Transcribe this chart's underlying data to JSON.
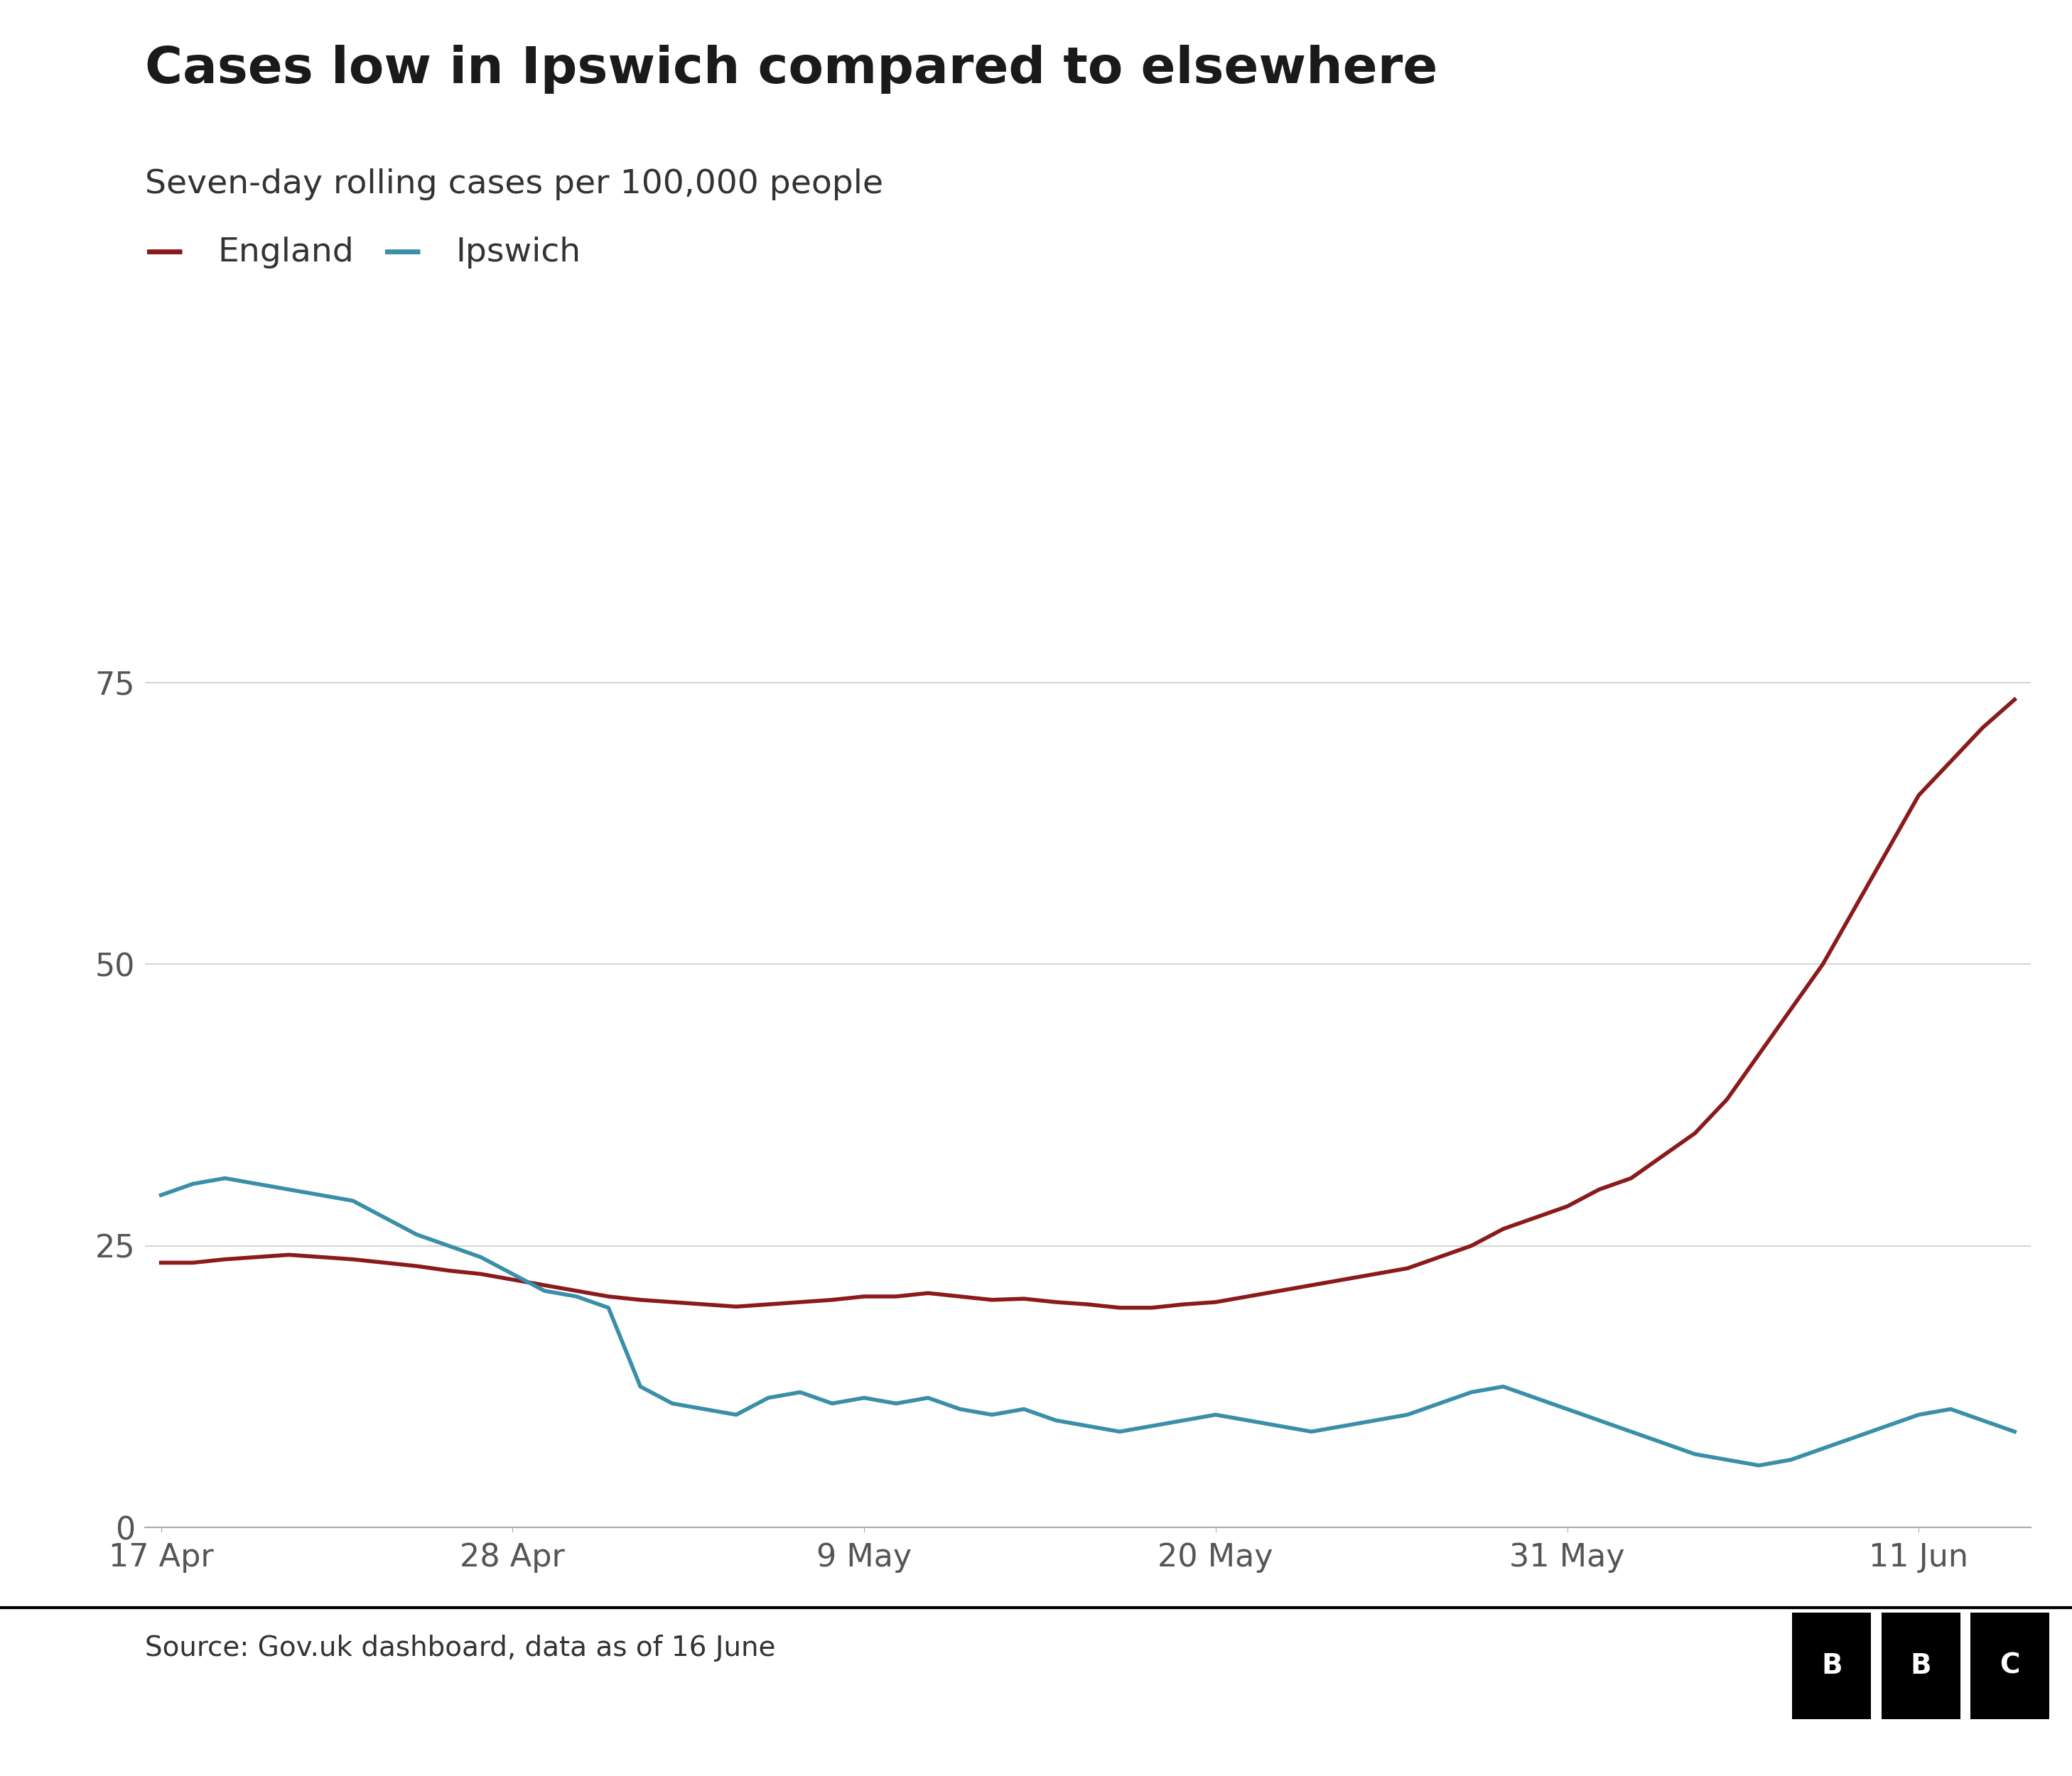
{
  "title": "Cases low in Ipswich compared to elsewhere",
  "subtitle": "Seven-day rolling cases per 100,000 people",
  "source_text": "Source: Gov.uk dashboard, data as of 16 June",
  "england_color": "#8B1A1A",
  "ipswich_color": "#3A8FA8",
  "background_color": "#ffffff",
  "yticks": [
    0,
    25,
    50,
    75
  ],
  "xtick_labels": [
    "17 Apr",
    "28 Apr",
    "9 May",
    "20 May",
    "31 May",
    "11 Jun"
  ],
  "ylim": [
    0,
    82
  ],
  "title_fontsize": 52,
  "subtitle_fontsize": 34,
  "legend_fontsize": 34,
  "tick_fontsize": 32,
  "source_fontsize": 28,
  "england_data": [
    23.5,
    23.5,
    23.8,
    24.0,
    24.2,
    24.0,
    23.8,
    23.5,
    23.2,
    22.8,
    22.5,
    22.0,
    21.5,
    21.0,
    20.5,
    20.2,
    20.0,
    19.8,
    19.6,
    19.8,
    20.0,
    20.2,
    20.5,
    20.5,
    20.8,
    20.5,
    20.2,
    20.3,
    20.0,
    19.8,
    19.5,
    19.5,
    19.8,
    20.0,
    20.5,
    21.0,
    21.5,
    22.0,
    22.5,
    23.0,
    24.0,
    25.0,
    26.5,
    27.5,
    28.5,
    30.0,
    31.0,
    33.0,
    35.0,
    38.0,
    42.0,
    46.0,
    50.0,
    55.0,
    60.0,
    65.0,
    68.0,
    71.0,
    73.5
  ],
  "ipswich_data": [
    29.5,
    30.5,
    31.0,
    30.5,
    30.0,
    29.5,
    29.0,
    27.5,
    26.0,
    25.0,
    24.0,
    22.5,
    21.0,
    20.5,
    19.5,
    12.5,
    11.0,
    10.5,
    10.0,
    11.5,
    12.0,
    11.0,
    11.5,
    11.0,
    11.5,
    10.5,
    10.0,
    10.5,
    9.5,
    9.0,
    8.5,
    9.0,
    9.5,
    10.0,
    9.5,
    9.0,
    8.5,
    9.0,
    9.5,
    10.0,
    11.0,
    12.0,
    12.5,
    11.5,
    10.5,
    9.5,
    8.5,
    7.5,
    6.5,
    6.0,
    5.5,
    6.0,
    7.0,
    8.0,
    9.0,
    10.0,
    10.5,
    9.5,
    8.5
  ],
  "xtick_positions": [
    0,
    11,
    22,
    33,
    44,
    55
  ]
}
